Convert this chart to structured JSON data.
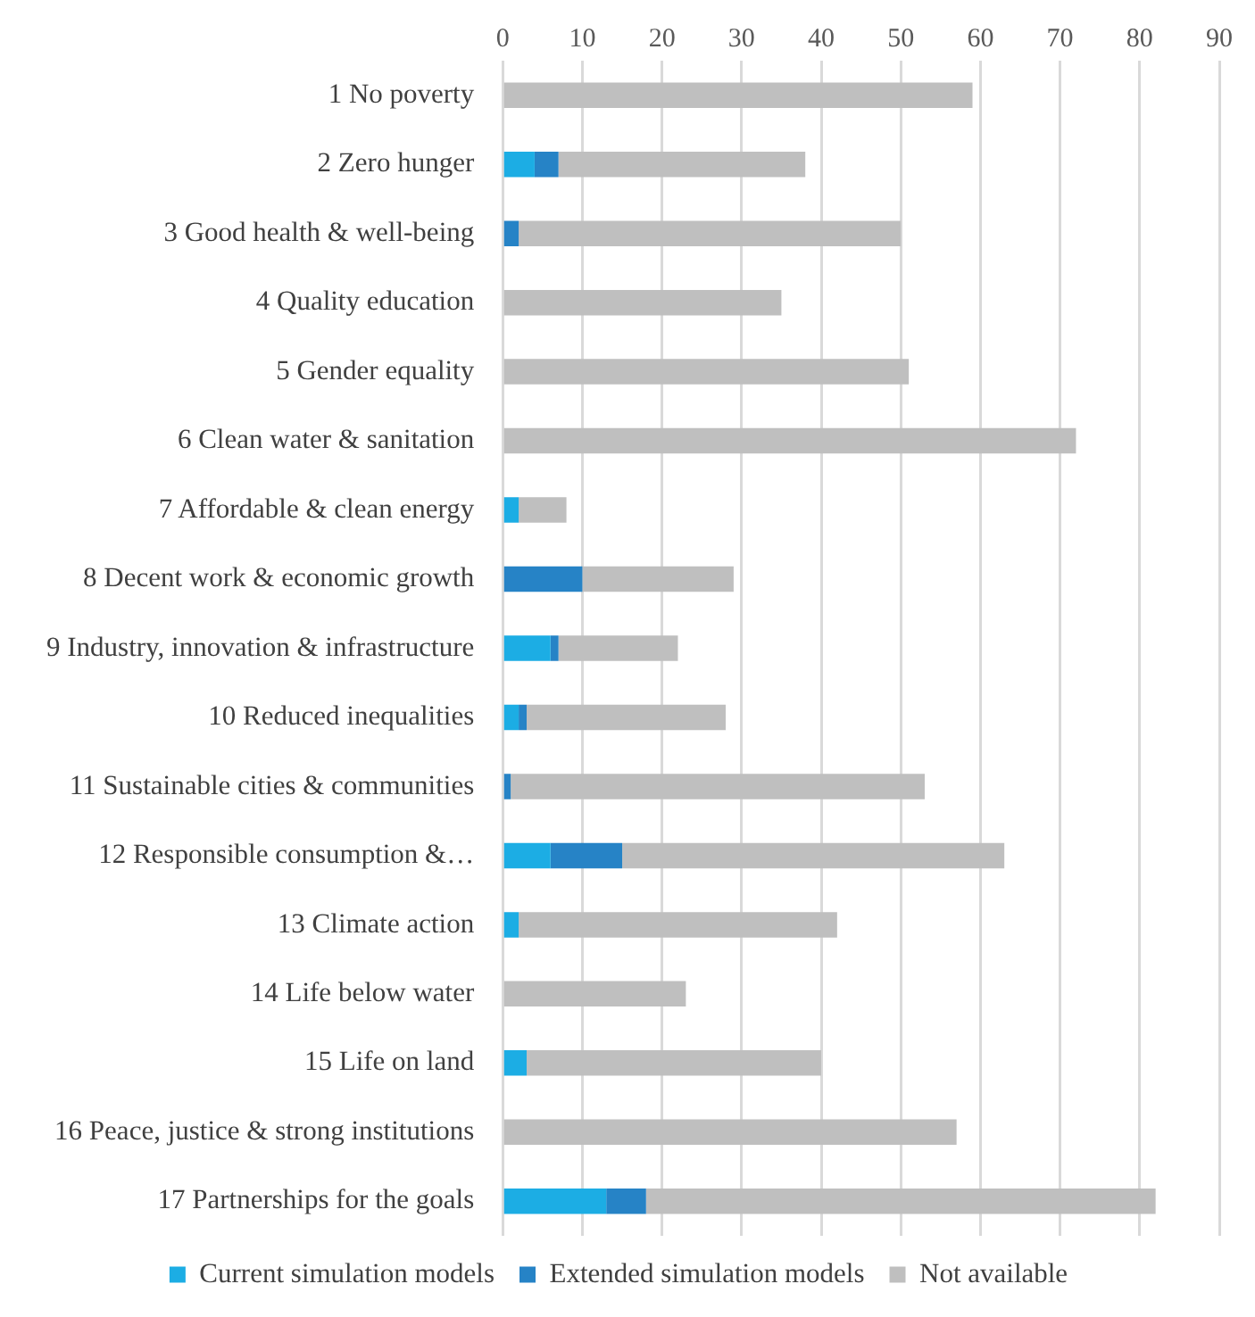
{
  "chart_data": {
    "type": "bar",
    "orientation": "horizontal",
    "stacked": true,
    "categories": [
      "1 No poverty",
      "2 Zero hunger",
      "3 Good health & well-being",
      "4 Quality education",
      "5 Gender equality",
      "6 Clean water & sanitation",
      "7 Affordable & clean energy",
      "8 Decent work & economic growth",
      "9 Industry, innovation & infrastructure",
      "10 Reduced inequalities",
      "11 Sustainable cities & communities",
      "12 Responsible consumption &…",
      "13 Climate action",
      "14 Life below water",
      "15 Life on land",
      "16 Peace, justice & strong institutions",
      "17 Partnerships for the goals"
    ],
    "series": [
      {
        "name": "Current simulation models",
        "color": "#1cade4",
        "values": [
          0,
          4,
          0,
          0,
          0,
          0,
          2,
          0,
          6,
          2,
          0,
          6,
          2,
          0,
          3,
          0,
          13
        ]
      },
      {
        "name": "Extended simulation models",
        "color": "#2683c6",
        "values": [
          0,
          3,
          2,
          0,
          0,
          0,
          0,
          10,
          1,
          1,
          1,
          9,
          0,
          0,
          0,
          0,
          5
        ]
      },
      {
        "name": "Not available",
        "color": "#bfbfbf",
        "values": [
          59,
          31,
          48,
          35,
          51,
          72,
          6,
          19,
          15,
          25,
          52,
          48,
          40,
          23,
          37,
          57,
          64
        ]
      }
    ],
    "xlim": [
      0,
      90
    ],
    "xticks": [
      0,
      10,
      20,
      30,
      40,
      50,
      60,
      70,
      80,
      90
    ],
    "grid": "x",
    "legend": "bottom"
  }
}
